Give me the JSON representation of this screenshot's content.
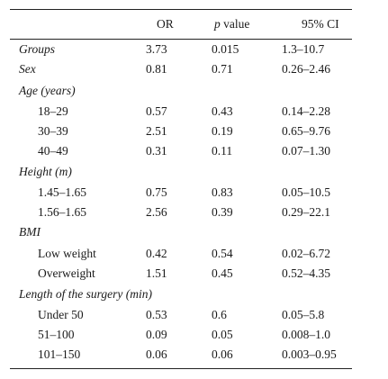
{
  "header": {
    "or": "OR",
    "p_italic": "p",
    "p_rest": " value",
    "ci": "95% CI"
  },
  "rows": [
    {
      "label": "Groups",
      "or": "3.73",
      "p": "0.015",
      "ci": "1.3–10.7"
    },
    {
      "label": "Sex",
      "or": "0.81",
      "p": "0.71",
      "ci": "0.26–2.46"
    },
    {
      "label": "Age (years)",
      "or": "",
      "p": "",
      "ci": ""
    },
    {
      "label": "18–29",
      "or": "0.57",
      "p": "0.43",
      "ci": "0.14–2.28"
    },
    {
      "label": "30–39",
      "or": "2.51",
      "p": "0.19",
      "ci": "0.65–9.76"
    },
    {
      "label": "40–49",
      "or": "0.31",
      "p": "0.11",
      "ci": "0.07–1.30"
    },
    {
      "label": "Height (m)",
      "or": "",
      "p": "",
      "ci": ""
    },
    {
      "label": "1.45–1.65",
      "or": "0.75",
      "p": "0.83",
      "ci": "0.05–10.5"
    },
    {
      "label": "1.56–1.65",
      "or": "2.56",
      "p": "0.39",
      "ci": "0.29–22.1"
    },
    {
      "label": "BMI",
      "or": "",
      "p": "",
      "ci": ""
    },
    {
      "label": "Low weight",
      "or": "0.42",
      "p": "0.54",
      "ci": "0.02–6.72"
    },
    {
      "label": "Overweight",
      "or": "1.51",
      "p": "0.45",
      "ci": "0.52–4.35"
    },
    {
      "label": "Length of the surgery (min)",
      "or": "",
      "p": "",
      "ci": ""
    },
    {
      "label": "Under 50",
      "or": "0.53",
      "p": "0.6",
      "ci": "0.05–5.8"
    },
    {
      "label": "51–100",
      "or": "0.09",
      "p": "0.05",
      "ci": "0.008–1.0"
    },
    {
      "label": "101–150",
      "or": "0.06",
      "p": "0.06",
      "ci": "0.003–0.95"
    }
  ]
}
